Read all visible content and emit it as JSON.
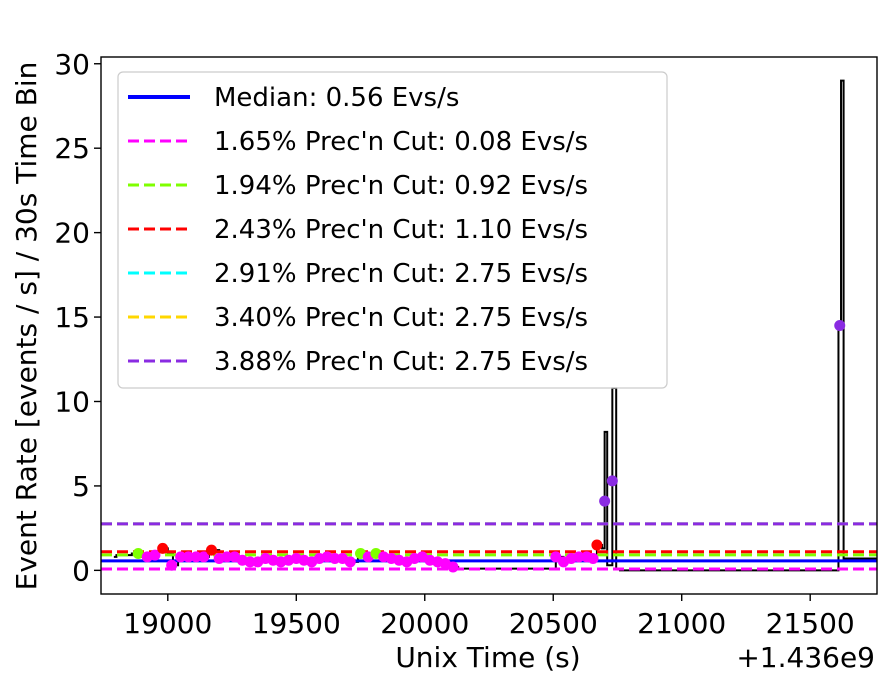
{
  "chart_data": {
    "type": "scatter",
    "xlabel": "Unix Time (s)",
    "ylabel": "Event Rate [events / s] / 30s Time Bin",
    "x_offset_label": "+1.436e9",
    "xlim": [
      18740,
      21760
    ],
    "ylim": [
      -1.4,
      30.4
    ],
    "x_ticks": [
      19000,
      19500,
      20000,
      20500,
      21000,
      21500
    ],
    "y_ticks": [
      0,
      5,
      10,
      15,
      20,
      25,
      30
    ],
    "grid": false,
    "legend_position": "upper-left",
    "legend": [
      {
        "label": "Median: 0.56 Evs/s",
        "color": "#0000ff",
        "style": "solid"
      },
      {
        "label": "1.65% Prec'n Cut: 0.08 Evs/s",
        "color": "#ff00ff",
        "style": "dashed"
      },
      {
        "label": "1.94% Prec'n Cut: 0.92 Evs/s",
        "color": "#7fff00",
        "style": "dashed"
      },
      {
        "label": "2.43% Prec'n Cut: 1.10 Evs/s",
        "color": "#ff0000",
        "style": "dashed"
      },
      {
        "label": "2.91% Prec'n Cut: 2.75 Evs/s",
        "color": "#00ffff",
        "style": "dashed"
      },
      {
        "label": "3.40% Prec'n Cut: 2.75 Evs/s",
        "color": "#ffd700",
        "style": "dashed"
      },
      {
        "label": "3.88% Prec'n Cut: 2.75 Evs/s",
        "color": "#8a2be2",
        "style": "dashed"
      }
    ],
    "horizontal_lines": [
      {
        "y": 0.56,
        "color": "#0000ff",
        "style": "solid"
      },
      {
        "y": 0.08,
        "color": "#ff00ff",
        "style": "dashed"
      },
      {
        "y": 0.92,
        "color": "#7fff00",
        "style": "dashed"
      },
      {
        "y": 1.1,
        "color": "#ff0000",
        "style": "dashed"
      },
      {
        "y": 2.75,
        "color": "#00ffff",
        "style": "dashed"
      },
      {
        "y": 2.75,
        "color": "#ffd700",
        "style": "dashed"
      },
      {
        "y": 2.75,
        "color": "#8a2be2",
        "style": "dashed"
      }
    ],
    "step_series": {
      "color": "#000000",
      "points": [
        [
          18790,
          0.8
        ],
        [
          18800,
          0.9
        ],
        [
          18860,
          1.0
        ],
        [
          18885,
          1.0
        ],
        [
          18900,
          0.8
        ],
        [
          18930,
          1.0
        ],
        [
          18960,
          1.1
        ],
        [
          18980,
          1.3
        ],
        [
          19000,
          1.0
        ],
        [
          19020,
          0.3
        ],
        [
          19040,
          0.8
        ],
        [
          19060,
          0.9
        ],
        [
          19080,
          0.8
        ],
        [
          19100,
          0.9
        ],
        [
          19130,
          0.8
        ],
        [
          19160,
          1.0
        ],
        [
          19170,
          1.2
        ],
        [
          19200,
          0.7
        ],
        [
          19230,
          0.8
        ],
        [
          19260,
          0.8
        ],
        [
          19290,
          0.6
        ],
        [
          19320,
          0.6
        ],
        [
          19350,
          0.5
        ],
        [
          19380,
          0.7
        ],
        [
          19410,
          0.6
        ],
        [
          19440,
          0.5
        ],
        [
          19470,
          0.6
        ],
        [
          19500,
          0.7
        ],
        [
          19530,
          0.6
        ],
        [
          19560,
          0.5
        ],
        [
          19590,
          0.7
        ],
        [
          19620,
          0.8
        ],
        [
          19650,
          0.7
        ],
        [
          19680,
          0.7
        ],
        [
          19710,
          0.5
        ],
        [
          19740,
          0.9
        ],
        [
          19770,
          0.8
        ],
        [
          19810,
          1.0
        ],
        [
          19840,
          0.8
        ],
        [
          19870,
          0.7
        ],
        [
          19900,
          0.6
        ],
        [
          19930,
          0.5
        ],
        [
          19960,
          0.7
        ],
        [
          19990,
          0.8
        ],
        [
          20020,
          0.6
        ],
        [
          20050,
          0.5
        ],
        [
          20080,
          0.4
        ],
        [
          20110,
          0.2
        ],
        [
          20130,
          0.1
        ],
        [
          20480,
          0.1
        ],
        [
          20510,
          0.8
        ],
        [
          20540,
          0.5
        ],
        [
          20570,
          0.7
        ],
        [
          20600,
          0.8
        ],
        [
          20630,
          0.8
        ],
        [
          20655,
          0.9
        ],
        [
          20670,
          1.5
        ],
        [
          20690,
          1.3
        ],
        [
          20700,
          8.2
        ],
        [
          20710,
          0.3
        ],
        [
          20730,
          10.8
        ],
        [
          20745,
          0.1
        ],
        [
          20760,
          0.0
        ],
        [
          21600,
          0.0
        ],
        [
          21610,
          14.5
        ],
        [
          21620,
          29.0
        ],
        [
          21630,
          0.7
        ],
        [
          21760,
          0.7
        ]
      ]
    },
    "scatter_points": [
      {
        "x": 18885,
        "y": 1.0,
        "color": "#7fff00"
      },
      {
        "x": 18920,
        "y": 0.8,
        "color": "#ff00ff"
      },
      {
        "x": 18950,
        "y": 0.9,
        "color": "#ff00ff"
      },
      {
        "x": 18980,
        "y": 1.3,
        "color": "#ff0000"
      },
      {
        "x": 19015,
        "y": 0.3,
        "color": "#ff00ff"
      },
      {
        "x": 19050,
        "y": 0.8,
        "color": "#ff00ff"
      },
      {
        "x": 19080,
        "y": 0.8,
        "color": "#ff00ff"
      },
      {
        "x": 19110,
        "y": 0.8,
        "color": "#ff00ff"
      },
      {
        "x": 19140,
        "y": 0.8,
        "color": "#ff00ff"
      },
      {
        "x": 19170,
        "y": 1.2,
        "color": "#ff0000"
      },
      {
        "x": 19200,
        "y": 0.7,
        "color": "#ff00ff"
      },
      {
        "x": 19230,
        "y": 0.8,
        "color": "#ff00ff"
      },
      {
        "x": 19260,
        "y": 0.8,
        "color": "#ff00ff"
      },
      {
        "x": 19290,
        "y": 0.6,
        "color": "#ff00ff"
      },
      {
        "x": 19320,
        "y": 0.5,
        "color": "#ff00ff"
      },
      {
        "x": 19350,
        "y": 0.5,
        "color": "#ff00ff"
      },
      {
        "x": 19380,
        "y": 0.7,
        "color": "#ff00ff"
      },
      {
        "x": 19410,
        "y": 0.6,
        "color": "#ff00ff"
      },
      {
        "x": 19440,
        "y": 0.5,
        "color": "#ff00ff"
      },
      {
        "x": 19470,
        "y": 0.6,
        "color": "#ff00ff"
      },
      {
        "x": 19500,
        "y": 0.7,
        "color": "#ff00ff"
      },
      {
        "x": 19530,
        "y": 0.6,
        "color": "#ff00ff"
      },
      {
        "x": 19560,
        "y": 0.5,
        "color": "#ff00ff"
      },
      {
        "x": 19590,
        "y": 0.7,
        "color": "#ff00ff"
      },
      {
        "x": 19620,
        "y": 0.8,
        "color": "#ff00ff"
      },
      {
        "x": 19650,
        "y": 0.7,
        "color": "#ff00ff"
      },
      {
        "x": 19680,
        "y": 0.7,
        "color": "#ff00ff"
      },
      {
        "x": 19710,
        "y": 0.5,
        "color": "#ff00ff"
      },
      {
        "x": 19750,
        "y": 1.0,
        "color": "#7fff00"
      },
      {
        "x": 19780,
        "y": 0.8,
        "color": "#ff00ff"
      },
      {
        "x": 19810,
        "y": 1.0,
        "color": "#7fff00"
      },
      {
        "x": 19840,
        "y": 0.8,
        "color": "#ff00ff"
      },
      {
        "x": 19870,
        "y": 0.7,
        "color": "#ff00ff"
      },
      {
        "x": 19900,
        "y": 0.6,
        "color": "#ff00ff"
      },
      {
        "x": 19930,
        "y": 0.5,
        "color": "#ff00ff"
      },
      {
        "x": 19960,
        "y": 0.7,
        "color": "#ff00ff"
      },
      {
        "x": 19990,
        "y": 0.8,
        "color": "#ff00ff"
      },
      {
        "x": 20020,
        "y": 0.6,
        "color": "#ff00ff"
      },
      {
        "x": 20050,
        "y": 0.5,
        "color": "#ff00ff"
      },
      {
        "x": 20080,
        "y": 0.4,
        "color": "#ff00ff"
      },
      {
        "x": 20110,
        "y": 0.2,
        "color": "#ff00ff"
      },
      {
        "x": 20510,
        "y": 0.8,
        "color": "#ff00ff"
      },
      {
        "x": 20540,
        "y": 0.5,
        "color": "#ff00ff"
      },
      {
        "x": 20570,
        "y": 0.7,
        "color": "#ff00ff"
      },
      {
        "x": 20600,
        "y": 0.8,
        "color": "#ff00ff"
      },
      {
        "x": 20630,
        "y": 0.8,
        "color": "#ff00ff"
      },
      {
        "x": 20655,
        "y": 0.7,
        "color": "#ff00ff"
      },
      {
        "x": 20670,
        "y": 1.5,
        "color": "#ff0000"
      },
      {
        "x": 20700,
        "y": 4.1,
        "color": "#8a2be2"
      },
      {
        "x": 20730,
        "y": 5.3,
        "color": "#8a2be2"
      },
      {
        "x": 21615,
        "y": 14.5,
        "color": "#8a2be2"
      }
    ]
  }
}
